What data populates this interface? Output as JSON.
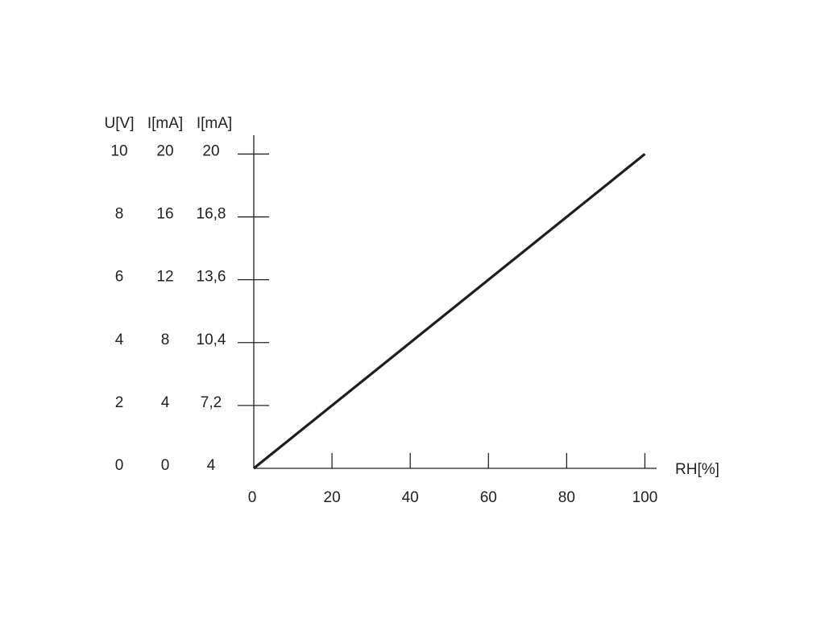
{
  "chart_data": {
    "type": "line",
    "x": [
      0,
      100
    ],
    "series": [
      {
        "color": "#1e1e1e",
        "values": [
          0,
          10
        ]
      }
    ],
    "xlabel": "RH[%]",
    "xlim": [
      0,
      103
    ],
    "xticks": [
      0,
      20,
      40,
      60,
      80,
      100
    ],
    "ylabel": "U[V]",
    "ylim": [
      0,
      10.6
    ],
    "yticks": [
      0,
      2,
      4,
      6,
      8,
      10
    ],
    "y2label": "I[mA]",
    "y2lim": [
      0,
      21.2
    ],
    "y2ticks": [
      0,
      4,
      8,
      12,
      16,
      20
    ],
    "y3label": "I[mA]",
    "y3lim": [
      4,
      20.96
    ],
    "y3ticks": [
      4,
      {
        "value": 7.2,
        "label": "7,2"
      },
      {
        "value": 10.4,
        "label": "10,4"
      },
      {
        "value": 13.6,
        "label": "13,6"
      },
      {
        "value": 16.8,
        "label": "16,8"
      },
      20
    ]
  }
}
